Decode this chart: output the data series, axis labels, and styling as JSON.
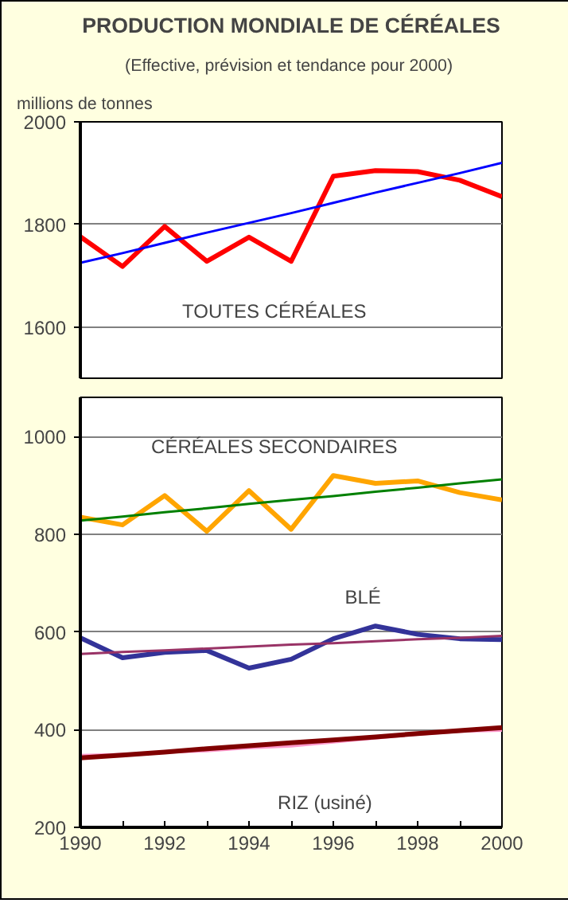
{
  "chart_data": [
    {
      "type": "line",
      "title": "PRODUCTION MONDIALE DE CÉRÉALES",
      "subtitle": "(Effective, prévision et tendance pour  2000)",
      "ylabel": "millions de tonnes",
      "x": [
        1990,
        1991,
        1992,
        1993,
        1994,
        1995,
        1996,
        1997,
        1998,
        1999,
        2000
      ],
      "xlim": [
        1990,
        2000
      ],
      "ylim": [
        1500,
        2000
      ],
      "yticks": [
        1600,
        1800,
        2000
      ],
      "grid": "y",
      "tick_labels": "y",
      "series": [
        {
          "name": "TOUTES CÉRÉALES",
          "color": "#ff0000",
          "values": [
            1776,
            1718,
            1796,
            1728,
            1775,
            1728,
            1894,
            1905,
            1903,
            1886,
            1854
          ]
        },
        {
          "color": "#0000ff",
          "values": [
            1725,
            1744,
            1764,
            1784,
            1803,
            1822,
            1842,
            1862,
            1881,
            1900,
            1920
          ]
        }
      ]
    },
    {
      "type": "line",
      "x": [
        1990,
        1991,
        1992,
        1993,
        1994,
        1995,
        1996,
        1997,
        1998,
        1999,
        2000
      ],
      "xlim": [
        1990,
        2000
      ],
      "xticks": [
        1990,
        {
          "value": 1991,
          "label": null
        },
        1992,
        {
          "value": 1993,
          "label": null
        },
        1994,
        {
          "value": 1995,
          "label": null
        },
        1996,
        {
          "value": 1997,
          "label": null
        },
        1998,
        {
          "value": 1999,
          "label": null
        },
        2000
      ],
      "ylim": [
        200,
        1080
      ],
      "yticks": [
        200,
        400,
        600,
        800,
        1000
      ],
      "grid": "y",
      "series": [
        {
          "name": "CÉRÉALES SECONDAIRES",
          "color": "#ffa500",
          "values": [
            835,
            819,
            879,
            806,
            889,
            810,
            920,
            904,
            909,
            885,
            870
          ]
        },
        {
          "color": "#008000",
          "values": [
            828,
            836,
            845,
            853,
            862,
            870,
            878,
            887,
            895,
            904,
            912
          ]
        },
        {
          "name": "BLÉ",
          "color": "#333399",
          "values": [
            588,
            547,
            558,
            562,
            526,
            544,
            586,
            612,
            595,
            586,
            584
          ]
        },
        {
          "color": "#993366",
          "values": [
            555,
            559,
            562,
            566,
            570,
            574,
            577,
            581,
            585,
            588,
            592
          ]
        },
        {
          "color": "#ff99cc",
          "values": [
            348,
            350,
            353,
            356,
            362,
            366,
            374,
            382,
            390,
            396,
            398
          ]
        },
        {
          "name": "RIZ (usiné)",
          "color": "#800000",
          "values": [
            342,
            348,
            354,
            361,
            367,
            373,
            379,
            385,
            392,
            398,
            404
          ]
        }
      ]
    }
  ]
}
